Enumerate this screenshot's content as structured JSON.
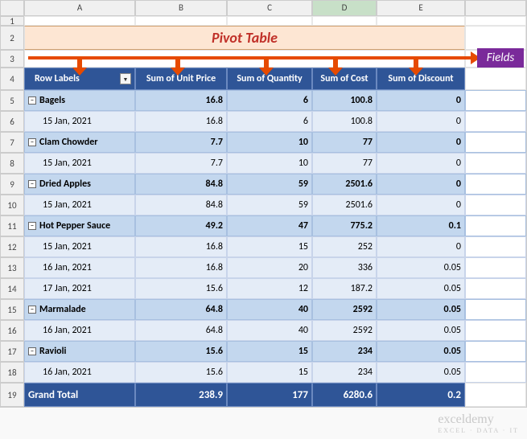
{
  "title": {
    "text": "Pivot Table",
    "color": "#c03028"
  },
  "fieldsTag": "Fields",
  "columns": [
    "A",
    "B",
    "C",
    "D",
    "E"
  ],
  "selectedCol": "D",
  "rowNumbers": [
    "1",
    "2",
    "3",
    "4",
    "5",
    "6",
    "7",
    "8",
    "9",
    "10",
    "11",
    "12",
    "13",
    "14",
    "15",
    "16",
    "17",
    "18",
    "19"
  ],
  "pivot": {
    "headers": [
      "Row Labels",
      "Sum of Unit Price",
      "Sum of Quantity",
      "Sum of Cost",
      "Sum of Discount"
    ],
    "groups": [
      {
        "label": "Bagels",
        "sub": "15 Jan, 2021",
        "vals": [
          "16.8",
          "6",
          "100.8",
          "0"
        ]
      },
      {
        "label": "Clam Chowder",
        "sub": "15 Jan, 2021",
        "vals": [
          "7.7",
          "10",
          "77",
          "0"
        ]
      },
      {
        "label": "Dried Apples",
        "sub": "15 Jan, 2021",
        "vals": [
          "84.8",
          "59",
          "2501.6",
          "0"
        ]
      }
    ],
    "hotPepper": {
      "label": "Hot Pepper Sauce",
      "vals": [
        "49.2",
        "47",
        "775.2",
        "0.1"
      ],
      "subs": [
        {
          "label": "15 Jan, 2021",
          "vals": [
            "16.8",
            "15",
            "252",
            "0"
          ]
        },
        {
          "label": "16 Jan, 2021",
          "vals": [
            "16.8",
            "20",
            "336",
            "0.05"
          ]
        },
        {
          "label": "17 Jan, 2021",
          "vals": [
            "15.6",
            "12",
            "187.2",
            "0.05"
          ]
        }
      ]
    },
    "marmalade": {
      "label": "Marmalade",
      "vals": [
        "64.8",
        "40",
        "2592",
        "0.05"
      ],
      "sub": {
        "label": "16 Jan, 2021",
        "vals": [
          "64.8",
          "40",
          "2592",
          "0.05"
        ]
      }
    },
    "ravioli": {
      "label": "Ravioli",
      "vals": [
        "15.6",
        "15",
        "234",
        "0.05"
      ],
      "sub": {
        "label": "16 Jan, 2021",
        "vals": [
          "15.6",
          "15",
          "234",
          "0.05"
        ]
      }
    },
    "grandTotal": {
      "label": "Grand Total",
      "vals": [
        "238.9",
        "177",
        "6280.6",
        "0.2"
      ]
    }
  },
  "watermark": {
    "main": "exceldemy",
    "sub": "EXCEL · DATA · IT"
  },
  "style": {
    "arrows": {
      "color": "#e64a00",
      "downPositions": [
        92,
        214,
        324,
        410,
        510
      ]
    }
  }
}
